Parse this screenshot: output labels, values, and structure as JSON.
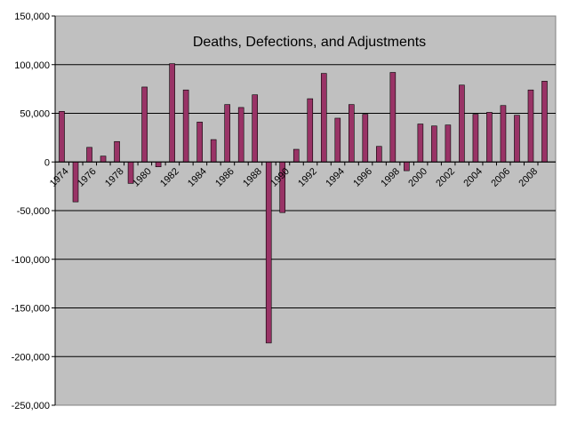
{
  "chart_data": {
    "type": "bar",
    "title": "Deaths, Defections, and Adjustments",
    "xlabel": "",
    "ylabel": "",
    "ylim": [
      -250000,
      150000
    ],
    "y_ticks": [
      150000,
      100000,
      50000,
      0,
      -50000,
      -100000,
      -150000,
      -200000,
      -250000
    ],
    "y_tick_labels": [
      "150,000",
      "100,000",
      "50,000",
      "0",
      "-50,000",
      "-100,000",
      "-150,000",
      "-200,000",
      "-250,000"
    ],
    "categories": [
      "1974",
      "1975",
      "1976",
      "1977",
      "1978",
      "1979",
      "1980",
      "1981",
      "1982",
      "1983",
      "1984",
      "1985",
      "1986",
      "1987",
      "1988",
      "1989",
      "1990",
      "1991",
      "1992",
      "1993",
      "1994",
      "1995",
      "1996",
      "1997",
      "1998",
      "1999",
      "2000",
      "2001",
      "2002",
      "2003",
      "2004",
      "2005",
      "2006",
      "2007",
      "2008",
      "2009"
    ],
    "x_tick_labels": [
      "1974",
      "",
      "1976",
      "",
      "1978",
      "",
      "1980",
      "",
      "1982",
      "",
      "1984",
      "",
      "1986",
      "",
      "1988",
      "",
      "1990",
      "",
      "1992",
      "",
      "1994",
      "",
      "1996",
      "",
      "1998",
      "",
      "2000",
      "",
      "2002",
      "",
      "2004",
      "",
      "2006",
      "",
      "2008",
      ""
    ],
    "values": [
      52000,
      -41000,
      15000,
      6000,
      21000,
      -22000,
      77000,
      -5000,
      101000,
      74000,
      41000,
      23000,
      59000,
      56000,
      69000,
      -186000,
      -52000,
      13000,
      65000,
      91000,
      45000,
      59000,
      49000,
      16000,
      92000,
      -9000,
      39000,
      37000,
      38000,
      79000,
      49000,
      51000,
      58000,
      48000,
      74000,
      83000
    ],
    "grid": true,
    "legend": "none",
    "colors": {
      "plot_background": "#c0c0c0",
      "bar_fill": "#993366",
      "bar_stroke": "#000000",
      "gridline": "#000000",
      "page_background": "#ffffff"
    }
  }
}
